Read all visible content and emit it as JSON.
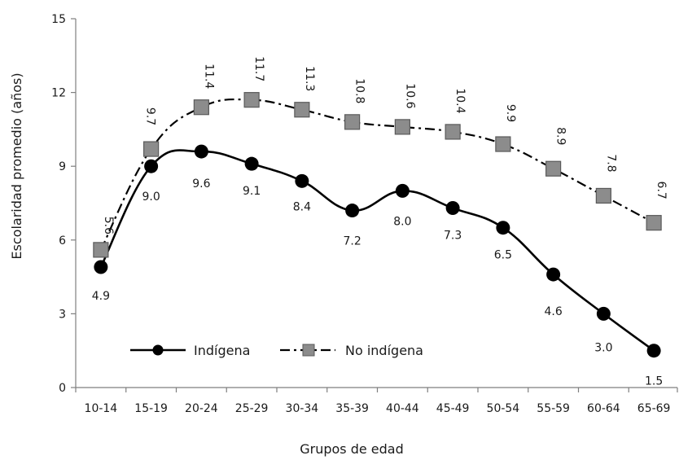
{
  "chart_data": {
    "type": "line",
    "title": "",
    "xlabel": "Grupos de edad",
    "ylabel": "Escolaridad promedio (años)",
    "categories": [
      "10-14",
      "15-19",
      "20-24",
      "25-29",
      "30-34",
      "35-39",
      "40-44",
      "45-49",
      "50-54",
      "55-59",
      "60-64",
      "65-69"
    ],
    "ylim": [
      0,
      15
    ],
    "yticks": [
      "0",
      "3",
      "6",
      "9",
      "12",
      "15"
    ],
    "grid": false,
    "legend_position": "bottom-left",
    "series": [
      {
        "name": "Indígena",
        "values": [
          4.9,
          9.0,
          9.6,
          9.1,
          8.4,
          7.2,
          8.0,
          7.3,
          6.5,
          4.6,
          3.0,
          1.5
        ],
        "labels": [
          "4.9",
          "9.0",
          "9.6",
          "9.1",
          "8.4",
          "7.2",
          "8.0",
          "7.3",
          "6.5",
          "4.6",
          "3.0",
          "1.5"
        ],
        "line_style": "solid",
        "marker": "circle",
        "color": "#000000"
      },
      {
        "name": "No indígena",
        "values": [
          5.6,
          9.7,
          11.4,
          11.7,
          11.3,
          10.8,
          10.6,
          10.4,
          9.9,
          8.9,
          7.8,
          6.7
        ],
        "labels": [
          "5.6",
          "9.7",
          "11.4",
          "11.7",
          "11.3",
          "10.8",
          "10.6",
          "10.4",
          "9.9",
          "8.9",
          "7.8",
          "6.7"
        ],
        "line_style": "dash-dot",
        "marker": "square",
        "color": "#000000",
        "marker_fill": "#8c8c8c"
      }
    ]
  }
}
